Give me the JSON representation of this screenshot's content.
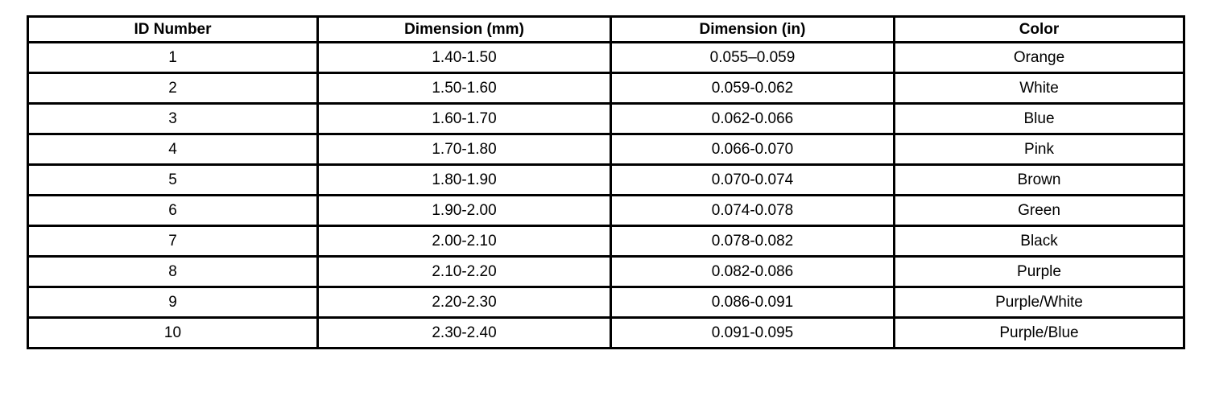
{
  "table": {
    "headers": [
      "ID Number",
      "Dimension (mm)",
      "Dimension (in)",
      "Color"
    ],
    "rows": [
      [
        "1",
        "1.40-1.50",
        "0.055–0.059",
        "Orange"
      ],
      [
        "2",
        "1.50-1.60",
        "0.059-0.062",
        "White"
      ],
      [
        "3",
        "1.60-1.70",
        "0.062-0.066",
        "Blue"
      ],
      [
        "4",
        "1.70-1.80",
        "0.066-0.070",
        "Pink"
      ],
      [
        "5",
        "1.80-1.90",
        "0.070-0.074",
        "Brown"
      ],
      [
        "6",
        "1.90-2.00",
        "0.074-0.078",
        "Green"
      ],
      [
        "7",
        "2.00-2.10",
        "0.078-0.082",
        "Black"
      ],
      [
        "8",
        "2.10-2.20",
        "0.082-0.086",
        "Purple"
      ],
      [
        "9",
        "2.20-2.30",
        "0.086-0.091",
        "Purple/White"
      ],
      [
        "10",
        "2.30-2.40",
        "0.091-0.095",
        "Purple/Blue"
      ]
    ]
  }
}
